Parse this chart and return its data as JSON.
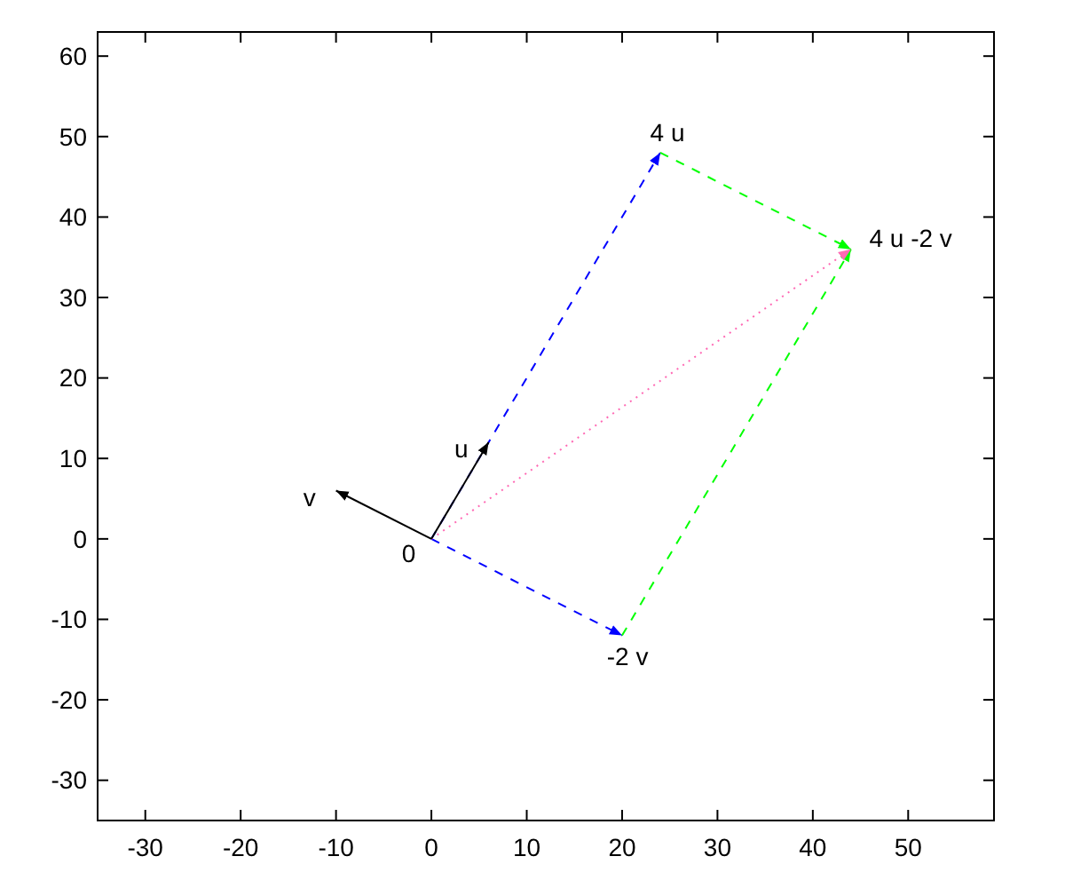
{
  "chart_data": {
    "type": "line",
    "xlim": [
      -35,
      59
    ],
    "ylim": [
      -35,
      63
    ],
    "xticks": [
      -30,
      -20,
      -10,
      0,
      10,
      20,
      30,
      40,
      50
    ],
    "yticks": [
      -30,
      -20,
      -10,
      0,
      10,
      20,
      30,
      40,
      50,
      60
    ],
    "grid": false,
    "marker": "none",
    "series": [
      {
        "color": "#0000ff",
        "line_style": "dashed",
        "x": [
          0,
          24
        ],
        "values": [
          0,
          48
        ]
      },
      {
        "color": "#0000ff",
        "line_style": "dashed",
        "x": [
          0,
          20
        ],
        "values": [
          0,
          -12
        ]
      },
      {
        "color": "#00ff00",
        "line_style": "dashed",
        "x": [
          24,
          44
        ],
        "values": [
          48,
          36
        ]
      },
      {
        "color": "#00ff00",
        "line_style": "dashed",
        "x": [
          20,
          44
        ],
        "values": [
          -12,
          36
        ]
      },
      {
        "color": "#ff69b4",
        "line_style": "dotted",
        "x": [
          0,
          44
        ],
        "values": [
          0,
          36
        ]
      },
      {
        "color": "#000000",
        "line_style": "solid",
        "x": [
          0,
          6
        ],
        "values": [
          0,
          12
        ]
      },
      {
        "color": "#000000",
        "line_style": "solid",
        "x": [
          0,
          -10
        ],
        "values": [
          0,
          6
        ]
      }
    ],
    "annotations": [
      {
        "text": "u",
        "x": 6,
        "y": 12
      },
      {
        "text": "v",
        "x": -10,
        "y": 6
      },
      {
        "text": "0",
        "x": 0,
        "y": 0
      },
      {
        "text": "4 u",
        "x": 24,
        "y": 48
      },
      {
        "text": "-2 v",
        "x": 20,
        "y": -12
      },
      {
        "text": "4 u -2 v",
        "x": 44,
        "y": 36
      }
    ]
  }
}
